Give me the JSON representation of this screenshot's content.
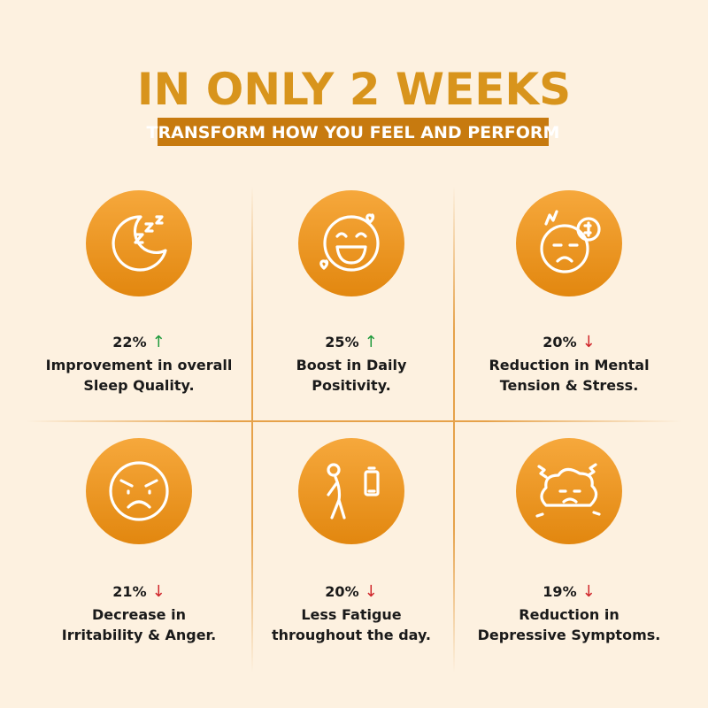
{
  "header": {
    "title": "IN ONLY 2 WEEKS",
    "subtitle": "TRANSFORM HOW YOU FEEL AND PERFORM"
  },
  "items": [
    {
      "percent": "22%",
      "arrow": "↑",
      "arrow_color": "#1f9a3c",
      "lines": [
        "Improvement in overall",
        "Sleep Quality."
      ]
    },
    {
      "percent": "25%",
      "arrow": "↑",
      "arrow_color": "#1f9a3c",
      "lines": [
        "Boost in Daily",
        "Positivity."
      ]
    },
    {
      "percent": "20%",
      "arrow": "↓",
      "arrow_color": "#d0262b",
      "lines": [
        "Reduction in Mental",
        "Tension & Stress."
      ]
    },
    {
      "percent": "21%",
      "arrow": "↓",
      "arrow_color": "#d0262b",
      "lines": [
        "Decrease in",
        "Irritability & Anger."
      ]
    },
    {
      "percent": "20%",
      "arrow": "↓",
      "arrow_color": "#d0262b",
      "lines": [
        "Less Fatigue",
        "throughout the day."
      ]
    },
    {
      "percent": "19%",
      "arrow": "↓",
      "arrow_color": "#d0262b",
      "lines": [
        "Reduction in",
        "Depressive Symptoms."
      ]
    }
  ]
}
